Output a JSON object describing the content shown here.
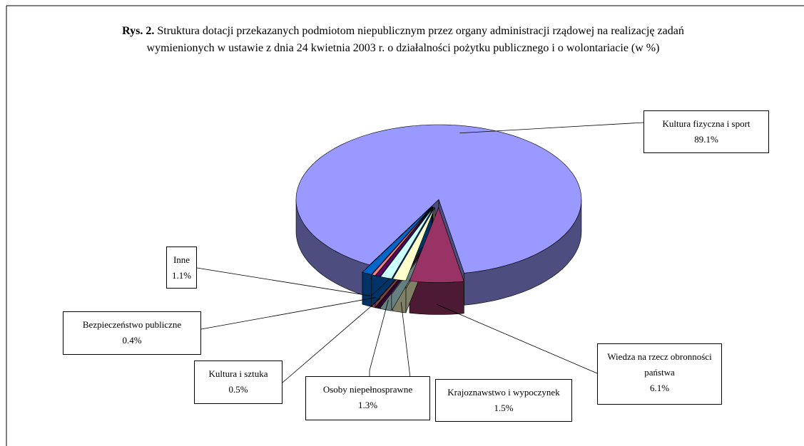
{
  "chart_data": {
    "type": "pie",
    "figure_label": "Rys. 2.",
    "title": "Struktura dotacji przekazanych podmiotom niepublicznym przez organy administracji rządowej na realizację zadań wymienionych w ustawie z dnia 24 kwietnia 2003 r. o działalności pożytku publicznego i o wolontariacie (w %)",
    "categories": [
      "Kultura fizyczna i sport",
      "Wiedza na rzecz obronności państwa",
      "Krajoznawstwo i wypoczynek",
      "Osoby niepełnosprawne",
      "Kultura i sztuka",
      "Bezpieczeństwo publiczne",
      "Inne"
    ],
    "values": [
      89.1,
      6.1,
      1.5,
      1.3,
      0.5,
      0.4,
      1.1
    ],
    "value_labels": [
      "89.1%",
      "6.1%",
      "1.5%",
      "1.3%",
      "0.5%",
      "0.4%",
      "1.1%"
    ],
    "colors": [
      "#9999ff",
      "#993366",
      "#ffffcc",
      "#ccffff",
      "#660066",
      "#ff8080",
      "#0066cc"
    ]
  }
}
